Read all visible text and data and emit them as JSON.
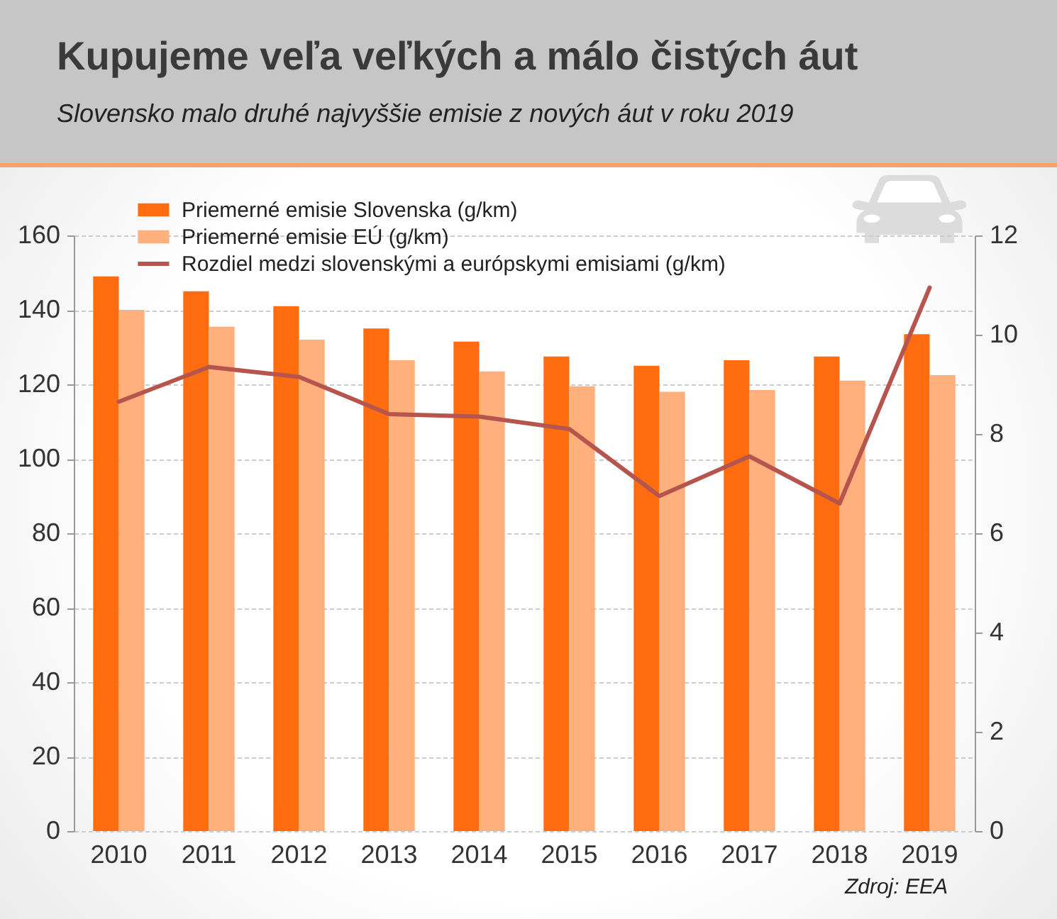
{
  "chart_data": {
    "type": "bar",
    "title": "Kupujeme veľa veľkých a málo čistých áut",
    "subtitle": "Slovensko malo druhé najvyššie emisie z nových áut v roku 2019",
    "categories": [
      "2010",
      "2011",
      "2012",
      "2013",
      "2014",
      "2015",
      "2016",
      "2017",
      "2018",
      "2019"
    ],
    "series": [
      {
        "name": "Priemerné emisie Slovenska (g/km)",
        "color": "#ff6d10",
        "values": [
          149,
          145,
          141,
          135,
          131.5,
          127.5,
          125,
          126.5,
          127.5,
          133.5
        ]
      },
      {
        "name": "Priemerné emisie EÚ (g/km)",
        "color": "#ffb07c",
        "values": [
          140,
          135.5,
          132,
          126.5,
          123.5,
          119.5,
          118,
          118.5,
          121,
          122.5
        ]
      },
      {
        "name": "Rozdiel medzi slovenskými a európskymi emisiami (g/km)",
        "type": "line",
        "axis": "y2",
        "color": "#b5554d",
        "values": [
          8.65,
          9.35,
          9.15,
          8.4,
          8.35,
          8.1,
          6.75,
          7.55,
          6.6,
          10.95
        ]
      }
    ],
    "ylim": [
      0,
      160
    ],
    "yticks": [
      0,
      20,
      40,
      60,
      80,
      100,
      120,
      140,
      160
    ],
    "y2lim": [
      0,
      12
    ],
    "y2ticks": [
      0,
      2,
      4,
      6,
      8,
      10,
      12
    ],
    "grid": "y",
    "legend": "top left",
    "annotations": [
      "Zdroj: EEA"
    ]
  }
}
